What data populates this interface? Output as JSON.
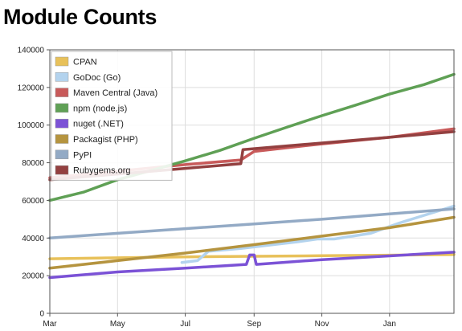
{
  "chart_data": {
    "type": "line",
    "title": "Module Counts",
    "xlabel": "",
    "ylabel": "",
    "x_start": "2013-03-01",
    "x_end": "2014-02-28",
    "ylim": [
      0,
      140000
    ],
    "yticks": [
      0,
      20000,
      40000,
      60000,
      80000,
      100000,
      120000,
      140000
    ],
    "xticks": [
      {
        "date": "2013-03-01",
        "label": "Mar"
      },
      {
        "date": "2013-05-01",
        "label": "May"
      },
      {
        "date": "2013-07-01",
        "label": "Jul"
      },
      {
        "date": "2013-09-01",
        "label": "Sep"
      },
      {
        "date": "2013-11-01",
        "label": "Nov"
      },
      {
        "date": "2014-01-01",
        "label": "Jan"
      }
    ],
    "grid": true,
    "legend_position": "top-left",
    "series": [
      {
        "name": "CPAN",
        "color": "#e8c15a",
        "points": [
          {
            "x": "2013-03-01",
            "y": 29000
          },
          {
            "x": "2013-05-01",
            "y": 29500
          },
          {
            "x": "2013-07-01",
            "y": 30000
          },
          {
            "x": "2013-09-01",
            "y": 30300
          },
          {
            "x": "2013-11-01",
            "y": 30600
          },
          {
            "x": "2014-01-01",
            "y": 30900
          },
          {
            "x": "2014-02-28",
            "y": 31200
          }
        ]
      },
      {
        "name": "GoDoc (Go)",
        "color": "#b3d3ee",
        "points": [
          {
            "x": "2013-06-28",
            "y": 27000
          },
          {
            "x": "2013-07-12",
            "y": 28000
          },
          {
            "x": "2013-07-22",
            "y": 33000
          },
          {
            "x": "2013-08-20",
            "y": 34500
          },
          {
            "x": "2013-10-10",
            "y": 38000
          },
          {
            "x": "2013-10-28",
            "y": 39500
          },
          {
            "x": "2013-11-12",
            "y": 39500
          },
          {
            "x": "2013-12-15",
            "y": 42500
          },
          {
            "x": "2014-01-10",
            "y": 48000
          },
          {
            "x": "2014-02-28",
            "y": 57000
          }
        ]
      },
      {
        "name": "Maven Central (Java)",
        "color": "#c85a5a",
        "points": [
          {
            "x": "2013-03-01",
            "y": 72000
          },
          {
            "x": "2013-05-01",
            "y": 75500
          },
          {
            "x": "2013-07-01",
            "y": 79000
          },
          {
            "x": "2013-08-20",
            "y": 81500
          },
          {
            "x": "2013-09-01",
            "y": 86000
          },
          {
            "x": "2013-11-01",
            "y": 90000
          },
          {
            "x": "2014-01-01",
            "y": 93500
          },
          {
            "x": "2014-02-28",
            "y": 98000
          }
        ]
      },
      {
        "name": "npm (node.js)",
        "color": "#5fa055",
        "points": [
          {
            "x": "2013-03-01",
            "y": 60000
          },
          {
            "x": "2013-04-01",
            "y": 64500
          },
          {
            "x": "2013-05-01",
            "y": 71000
          },
          {
            "x": "2013-06-01",
            "y": 76000
          },
          {
            "x": "2013-07-01",
            "y": 81000
          },
          {
            "x": "2013-08-01",
            "y": 86500
          },
          {
            "x": "2013-09-01",
            "y": 93000
          },
          {
            "x": "2013-10-01",
            "y": 99000
          },
          {
            "x": "2013-11-01",
            "y": 105000
          },
          {
            "x": "2013-12-01",
            "y": 110500
          },
          {
            "x": "2014-01-01",
            "y": 116500
          },
          {
            "x": "2014-02-01",
            "y": 121500
          },
          {
            "x": "2014-02-28",
            "y": 127000
          }
        ]
      },
      {
        "name": "nuget (.NET)",
        "color": "#7b52d6",
        "points": [
          {
            "x": "2013-03-01",
            "y": 19000
          },
          {
            "x": "2013-05-01",
            "y": 22000
          },
          {
            "x": "2013-07-01",
            "y": 24000
          },
          {
            "x": "2013-08-25",
            "y": 26000
          },
          {
            "x": "2013-08-28",
            "y": 31000
          },
          {
            "x": "2013-09-01",
            "y": 31000
          },
          {
            "x": "2013-09-03",
            "y": 26000
          },
          {
            "x": "2013-11-01",
            "y": 28500
          },
          {
            "x": "2014-01-01",
            "y": 30500
          },
          {
            "x": "2014-02-28",
            "y": 32500
          }
        ]
      },
      {
        "name": "Packagist (PHP)",
        "color": "#b5943f",
        "points": [
          {
            "x": "2013-03-01",
            "y": 24000
          },
          {
            "x": "2013-05-01",
            "y": 28000
          },
          {
            "x": "2013-07-01",
            "y": 32000
          },
          {
            "x": "2013-09-01",
            "y": 36500
          },
          {
            "x": "2013-11-01",
            "y": 41000
          },
          {
            "x": "2014-01-01",
            "y": 45500
          },
          {
            "x": "2014-02-28",
            "y": 51000
          }
        ]
      },
      {
        "name": "PyPI",
        "color": "#93aac5",
        "points": [
          {
            "x": "2013-03-01",
            "y": 40000
          },
          {
            "x": "2013-05-01",
            "y": 42500
          },
          {
            "x": "2013-07-01",
            "y": 45000
          },
          {
            "x": "2013-09-01",
            "y": 47500
          },
          {
            "x": "2013-11-01",
            "y": 50000
          },
          {
            "x": "2014-01-01",
            "y": 52800
          },
          {
            "x": "2014-02-28",
            "y": 55500
          }
        ]
      },
      {
        "name": "Rubygems.org",
        "color": "#934040",
        "points": [
          {
            "x": "2013-03-01",
            "y": 71000
          },
          {
            "x": "2013-05-01",
            "y": 74000
          },
          {
            "x": "2013-07-01",
            "y": 77000
          },
          {
            "x": "2013-08-20",
            "y": 79500
          },
          {
            "x": "2013-08-22",
            "y": 87000
          },
          {
            "x": "2013-11-01",
            "y": 90500
          },
          {
            "x": "2014-01-01",
            "y": 93500
          },
          {
            "x": "2014-02-28",
            "y": 96500
          }
        ]
      }
    ]
  }
}
